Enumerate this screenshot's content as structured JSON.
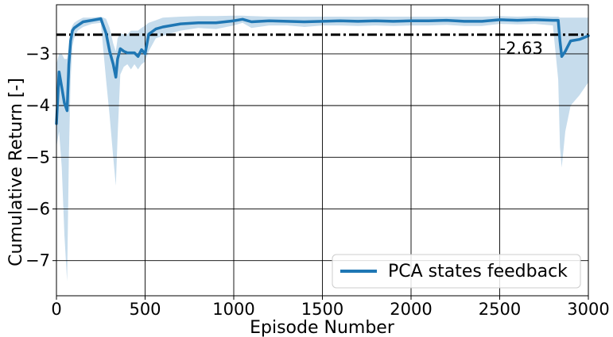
{
  "chart_data": {
    "type": "line",
    "title": "",
    "xlabel": "Episode Number",
    "ylabel": "Cumulative Return [-]",
    "xlim": [
      0,
      3000
    ],
    "ylim": [
      -7.68,
      -2.05
    ],
    "x_ticks": [
      0,
      500,
      1000,
      1500,
      2000,
      2500,
      3000
    ],
    "x_tick_labels": [
      "0",
      "500",
      "1000",
      "1500",
      "2000",
      "2500",
      "3000"
    ],
    "y_ticks": [
      -7,
      -6,
      -5,
      -4,
      -3
    ],
    "y_tick_labels": [
      "−7",
      "−6",
      "−5",
      "−4",
      "−3"
    ],
    "grid": true,
    "legend_position": "lower-right",
    "series": [
      {
        "name": "PCA states feedback",
        "color": "#1f77b4",
        "band_color": "#c6dcec",
        "x": [
          0,
          15,
          30,
          45,
          60,
          70,
          80,
          90,
          100,
          120,
          150,
          200,
          250,
          280,
          300,
          320,
          335,
          345,
          360,
          380,
          400,
          420,
          440,
          460,
          480,
          500,
          520,
          560,
          600,
          700,
          800,
          900,
          1000,
          1050,
          1100,
          1200,
          1300,
          1400,
          1500,
          1600,
          1700,
          1800,
          1900,
          2000,
          2100,
          2200,
          2300,
          2400,
          2500,
          2600,
          2700,
          2800,
          2830,
          2840,
          2850,
          2870,
          2900,
          2950,
          3000
        ],
        "mean": [
          -4.35,
          -3.35,
          -3.65,
          -3.95,
          -4.1,
          -3.2,
          -2.75,
          -2.55,
          -2.5,
          -2.45,
          -2.38,
          -2.35,
          -2.32,
          -2.6,
          -2.95,
          -3.2,
          -3.45,
          -3.1,
          -2.9,
          -2.95,
          -2.98,
          -2.98,
          -2.98,
          -3.05,
          -2.92,
          -3.0,
          -2.62,
          -2.52,
          -2.48,
          -2.42,
          -2.4,
          -2.4,
          -2.36,
          -2.33,
          -2.38,
          -2.36,
          -2.37,
          -2.38,
          -2.37,
          -2.36,
          -2.37,
          -2.36,
          -2.37,
          -2.36,
          -2.36,
          -2.35,
          -2.37,
          -2.37,
          -2.34,
          -2.35,
          -2.34,
          -2.35,
          -2.35,
          -2.75,
          -3.05,
          -2.95,
          -2.75,
          -2.72,
          -2.65
        ],
        "upper": [
          -3.2,
          -3.0,
          -3.0,
          -3.1,
          -3.1,
          -2.9,
          -2.55,
          -2.45,
          -2.4,
          -2.35,
          -2.3,
          -2.3,
          -2.28,
          -2.32,
          -2.5,
          -2.8,
          -2.95,
          -2.7,
          -2.6,
          -2.62,
          -2.62,
          -2.55,
          -2.55,
          -2.55,
          -2.5,
          -2.45,
          -2.4,
          -2.35,
          -2.3,
          -2.28,
          -2.27,
          -2.27,
          -2.26,
          -2.26,
          -2.27,
          -2.28,
          -2.28,
          -2.28,
          -2.28,
          -2.28,
          -2.28,
          -2.28,
          -2.28,
          -2.28,
          -2.28,
          -2.28,
          -2.28,
          -2.28,
          -2.27,
          -2.28,
          -2.27,
          -2.28,
          -2.28,
          -2.3,
          -2.3,
          -2.3,
          -2.3,
          -2.3,
          -2.3
        ],
        "lower": [
          -4.8,
          -4.5,
          -5.2,
          -6.5,
          -7.4,
          -5.0,
          -3.5,
          -2.85,
          -2.7,
          -2.55,
          -2.48,
          -2.42,
          -2.4,
          -3.5,
          -4.2,
          -5.0,
          -5.55,
          -4.6,
          -3.4,
          -3.25,
          -3.2,
          -3.3,
          -3.2,
          -3.3,
          -3.2,
          -3.15,
          -2.95,
          -2.7,
          -2.65,
          -2.55,
          -2.5,
          -2.52,
          -2.45,
          -2.4,
          -2.5,
          -2.45,
          -2.45,
          -2.48,
          -2.45,
          -2.45,
          -2.46,
          -2.45,
          -2.46,
          -2.45,
          -2.45,
          -2.44,
          -2.46,
          -2.46,
          -2.42,
          -2.43,
          -2.42,
          -2.45,
          -3.5,
          -4.8,
          -5.2,
          -4.5,
          -4.0,
          -3.8,
          -3.55
        ]
      }
    ],
    "reference_line": {
      "value": -2.63,
      "label": "-2.63",
      "style": "dashdot",
      "color": "#000000"
    }
  }
}
